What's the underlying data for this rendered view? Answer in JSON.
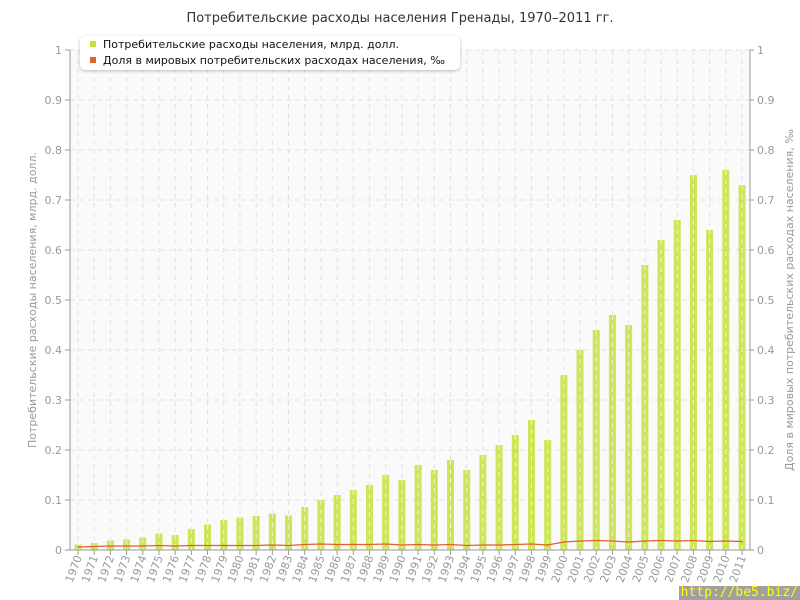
{
  "chart_data": {
    "type": "bar",
    "title": "Потребительские расходы населения Гренады, 1970–2011 гг.",
    "ylabel": "Потребительские расходы населения, млрд. долл.",
    "y2label": "Доля в мировых потребительских расходах населения, ‰",
    "ylim": [
      0,
      1
    ],
    "y2lim": [
      0,
      1
    ],
    "yticks": [
      "0",
      "0.1",
      "0.2",
      "0.3",
      "0.4",
      "0.5",
      "0.6",
      "0.7",
      "0.8",
      "0.9",
      "1"
    ],
    "grid": true,
    "legend_placement": "top-left",
    "categories": [
      "1970",
      "1971",
      "1972",
      "1973",
      "1974",
      "1975",
      "1976",
      "1977",
      "1978",
      "1979",
      "1980",
      "1981",
      "1982",
      "1983",
      "1984",
      "1985",
      "1986",
      "1987",
      "1988",
      "1989",
      "1990",
      "1991",
      "1992",
      "1993",
      "1994",
      "1995",
      "1996",
      "1997",
      "1998",
      "1999",
      "2000",
      "2001",
      "2002",
      "2003",
      "2004",
      "2005",
      "2006",
      "2007",
      "2008",
      "2009",
      "2010",
      "2011"
    ],
    "series": [
      {
        "name": "Потребительские расходы населения, млрд. долл.",
        "type": "bar",
        "axis": "left",
        "color": "#c5e03c",
        "values": [
          0.011,
          0.014,
          0.019,
          0.021,
          0.025,
          0.033,
          0.03,
          0.042,
          0.051,
          0.06,
          0.065,
          0.068,
          0.073,
          0.069,
          0.086,
          0.1,
          0.11,
          0.12,
          0.13,
          0.15,
          0.14,
          0.17,
          0.16,
          0.18,
          0.16,
          0.19,
          0.21,
          0.23,
          0.26,
          0.22,
          0.35,
          0.4,
          0.44,
          0.47,
          0.45,
          0.57,
          0.62,
          0.66,
          0.75,
          0.64,
          0.76,
          0.73
        ]
      },
      {
        "name": "Доля в мировых потребительских расходах населения, ‰",
        "type": "line",
        "axis": "right",
        "color": "#e0622a",
        "values": [
          0.006,
          0.007,
          0.008,
          0.008,
          0.008,
          0.009,
          0.008,
          0.009,
          0.009,
          0.009,
          0.009,
          0.009,
          0.01,
          0.009,
          0.011,
          0.012,
          0.011,
          0.011,
          0.011,
          0.012,
          0.01,
          0.011,
          0.01,
          0.011,
          0.009,
          0.01,
          0.01,
          0.011,
          0.012,
          0.01,
          0.016,
          0.018,
          0.019,
          0.018,
          0.016,
          0.018,
          0.019,
          0.018,
          0.019,
          0.017,
          0.018,
          0.017
        ]
      }
    ]
  },
  "watermark": "http://be5.biz/"
}
